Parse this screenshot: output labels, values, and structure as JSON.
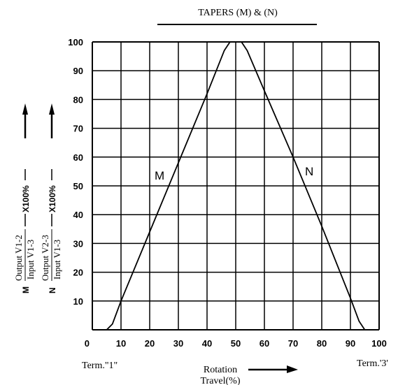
{
  "chart_data": {
    "type": "line",
    "title": "TAPERS (M) & (N)",
    "x_ticks": [
      "0",
      "10",
      "20",
      "30",
      "40",
      "50",
      "60",
      "70",
      "80",
      "90",
      "100"
    ],
    "y_ticks": [
      "10",
      "20",
      "30",
      "40",
      "50",
      "60",
      "70",
      "80",
      "90",
      "100"
    ],
    "xlim": [
      0,
      100
    ],
    "ylim": [
      0,
      100
    ],
    "grid": true,
    "xlabel_line1": "Rotation",
    "xlabel_line2": "Travel(%)",
    "x_end_left": "Term.\"1\"",
    "x_end_right": "Term.'3'",
    "series": [
      {
        "name": "M",
        "x": [
          5,
          7,
          10,
          20,
          30,
          40,
          46,
          48,
          50
        ],
        "y": [
          0,
          2,
          10,
          34,
          58,
          82,
          97,
          100,
          100
        ]
      },
      {
        "name": "N",
        "x": [
          50,
          52,
          54,
          60,
          70,
          80,
          90,
          93,
          95
        ],
        "y": [
          100,
          100,
          97,
          83,
          60,
          36,
          11,
          3,
          0
        ]
      }
    ],
    "ylabel_m": {
      "letter": "M",
      "numerator": "Output V1-2",
      "denominator": "Input  V1-3",
      "multiplier": "X100%"
    },
    "ylabel_n": {
      "letter": "N",
      "numerator": "Output V2-3",
      "denominator": "Input V1-3",
      "multiplier": "X100%"
    }
  }
}
